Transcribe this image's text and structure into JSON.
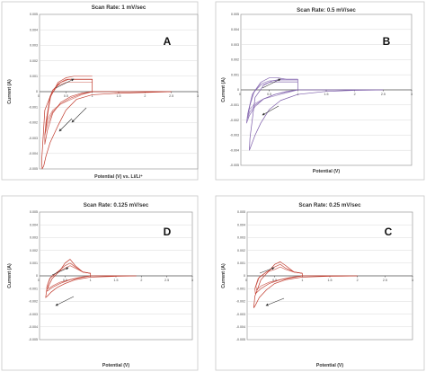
{
  "chart_data": [
    {
      "type": "line",
      "panel": "A",
      "title": "Scan Rate: 1 mV/sec",
      "xlabel": "Potential (V) vs. Li/Li⁺",
      "ylabel": "Current (A)",
      "xlim": [
        0,
        3
      ],
      "ylim": [
        -0.005,
        0.005
      ],
      "x_ticks": [
        "0.5",
        "1",
        "1.5",
        "2",
        "2.5",
        "3"
      ],
      "y_ticks": [
        "0.005",
        "0.004",
        "0.003",
        "0.002",
        "0.001",
        "0",
        "-0.001",
        "-0.002",
        "-0.003",
        "-0.004",
        "-0.005"
      ],
      "grid": true,
      "color": "#c0392b",
      "series": [
        {
          "x": [
            2.5,
            2.0,
            1.5,
            1.0,
            0.7,
            0.5,
            0.35,
            0.2,
            0.12,
            0.08,
            0.05,
            0.04,
            0.1,
            0.25,
            0.4,
            0.55,
            0.7,
            0.85,
            1.0,
            1.0,
            1.2,
            1.6,
            2.0,
            2.5
          ],
          "y": [
            0.0,
            -5e-05,
            -0.0001,
            -0.0002,
            -0.0005,
            -0.0012,
            -0.0022,
            -0.0033,
            -0.0042,
            -0.0048,
            -0.005,
            -0.0045,
            -0.0012,
            0.0001,
            0.0006,
            0.0008,
            0.0008,
            0.0008,
            0.0008,
            0.0,
            0.0,
            0.0,
            0.0,
            0.0
          ]
        },
        {
          "x": [
            1.0,
            0.8,
            0.6,
            0.4,
            0.25,
            0.15,
            0.1,
            0.1,
            0.2,
            0.35,
            0.5,
            0.65,
            0.8,
            1.0
          ],
          "y": [
            0.0,
            -0.0001,
            -0.0003,
            -0.0007,
            -0.0014,
            -0.0025,
            -0.0034,
            -0.0028,
            -0.0004,
            0.0006,
            0.0009,
            0.001,
            0.001,
            0.001
          ]
        },
        {
          "x": [
            1.0,
            0.8,
            0.6,
            0.4,
            0.25,
            0.15,
            0.1,
            0.12,
            0.2,
            0.35,
            0.5,
            0.65,
            0.8,
            1.0
          ],
          "y": [
            0.0,
            -0.00015,
            -0.0004,
            -0.0008,
            -0.0013,
            -0.0021,
            -0.0028,
            -0.002,
            -0.0003,
            0.0005,
            0.0008,
            0.0008,
            0.0008,
            0.0008
          ]
        },
        {
          "x": [
            1.0,
            0.8,
            0.6,
            0.4,
            0.25,
            0.15,
            0.12,
            0.14,
            0.22,
            0.35,
            0.5,
            0.65,
            0.8,
            1.0
          ],
          "y": [
            0.0,
            -0.0002,
            -0.0005,
            -0.0008,
            -0.0012,
            -0.0018,
            -0.0023,
            -0.0016,
            -0.0002,
            0.0004,
            0.0006,
            0.0006,
            0.0006,
            0.0006
          ]
        }
      ]
    },
    {
      "type": "line",
      "panel": "B",
      "title": "Scan Rate: 0.5 mV/sec",
      "xlabel": "Potential (V)",
      "ylabel": "Current (A)",
      "xlim": [
        0,
        3
      ],
      "ylim": [
        -0.005,
        0.005
      ],
      "x_ticks": [
        "0.5",
        "1",
        "1.5",
        "2",
        "2.5",
        "3"
      ],
      "y_ticks": [
        "0.005",
        "0.004",
        "0.003",
        "0.002",
        "0.001",
        "0",
        "-0.001",
        "-0.002",
        "-0.003",
        "-0.004",
        "-0.005"
      ],
      "grid": true,
      "color": "#7a5aa8",
      "series": [
        {
          "x": [
            2.5,
            2.0,
            1.5,
            1.0,
            0.7,
            0.5,
            0.35,
            0.25,
            0.18,
            0.15,
            0.16,
            0.25,
            0.4,
            0.55,
            0.7,
            0.85,
            1.0,
            1.0,
            1.5,
            2.0,
            2.5
          ],
          "y": [
            0.0,
            -3e-05,
            -0.0001,
            -0.0003,
            -0.0007,
            -0.0013,
            -0.0022,
            -0.003,
            -0.0037,
            -0.004,
            -0.0032,
            -0.0005,
            0.0003,
            0.0006,
            0.0007,
            0.0007,
            0.0007,
            0.0,
            0.0,
            0.0,
            0.0
          ]
        },
        {
          "x": [
            1.0,
            0.8,
            0.6,
            0.4,
            0.25,
            0.15,
            0.1,
            0.12,
            0.2,
            0.35,
            0.5,
            0.65,
            0.8,
            1.0
          ],
          "y": [
            0.0,
            -0.0001,
            -0.0003,
            -0.0006,
            -0.0011,
            -0.0017,
            -0.0022,
            -0.0016,
            -0.0003,
            0.0005,
            0.0008,
            0.0008,
            0.0007,
            0.0007
          ]
        },
        {
          "x": [
            1.0,
            0.8,
            0.6,
            0.4,
            0.25,
            0.15,
            0.12,
            0.14,
            0.22,
            0.35,
            0.5,
            0.65,
            0.8,
            1.0
          ],
          "y": [
            0.0,
            -0.00015,
            -0.0003,
            -0.0006,
            -0.001,
            -0.0015,
            -0.0019,
            -0.0013,
            -0.0002,
            0.0004,
            0.0006,
            0.0006,
            0.0006,
            0.0006
          ]
        },
        {
          "x": [
            1.0,
            0.8,
            0.6,
            0.4,
            0.25,
            0.15,
            0.14,
            0.16,
            0.24,
            0.35,
            0.5,
            0.65,
            0.8,
            1.0
          ],
          "y": [
            0.0,
            -0.0002,
            -0.0004,
            -0.0006,
            -0.0009,
            -0.0013,
            -0.0016,
            -0.001,
            -0.0001,
            0.0003,
            0.0005,
            0.0005,
            0.0005,
            0.0005
          ]
        }
      ]
    },
    {
      "type": "line",
      "panel": "D",
      "title": "Scan Rate: 0.125 mV/sec",
      "xlabel": "Potential (V)",
      "ylabel": "Current (A)",
      "xlim": [
        0,
        3
      ],
      "ylim": [
        -0.005,
        0.005
      ],
      "x_ticks": [
        "0.5",
        "1",
        "1.5",
        "2",
        "2.5",
        "3"
      ],
      "y_ticks": [
        "0.005",
        "0.004",
        "0.003",
        "0.002",
        "0.001",
        "0",
        "-0.001",
        "-0.002",
        "-0.003",
        "-0.004",
        "-0.005"
      ],
      "grid": true,
      "color": "#c0392b",
      "series": [
        {
          "x": [
            1.9,
            1.5,
            1.0,
            0.7,
            0.5,
            0.35,
            0.22,
            0.15,
            0.12,
            0.14,
            0.25,
            0.4,
            0.5,
            0.6,
            0.7,
            0.85,
            1.0,
            1.0,
            1.5,
            1.9
          ],
          "y": [
            0.0,
            -3e-05,
            -0.0001,
            -0.0003,
            -0.0006,
            -0.0009,
            -0.0013,
            -0.0016,
            -0.0017,
            -0.0011,
            -0.0002,
            0.0004,
            0.001,
            0.0013,
            0.0008,
            0.0003,
            0.0002,
            0.0,
            0.0,
            0.0
          ]
        },
        {
          "x": [
            1.0,
            0.8,
            0.6,
            0.4,
            0.25,
            0.15,
            0.14,
            0.2,
            0.35,
            0.5,
            0.6,
            0.7,
            0.85,
            1.0
          ],
          "y": [
            0.0,
            -0.0001,
            -0.0003,
            -0.0006,
            -0.0009,
            -0.0012,
            -0.0009,
            -0.0002,
            0.0003,
            0.0008,
            0.001,
            0.0007,
            0.0003,
            0.0002
          ]
        },
        {
          "x": [
            1.0,
            0.8,
            0.6,
            0.4,
            0.25,
            0.17,
            0.16,
            0.22,
            0.35,
            0.5,
            0.6,
            0.7,
            0.85,
            1.0
          ],
          "y": [
            0.0,
            -0.00015,
            -0.0003,
            -0.0005,
            -0.0008,
            -0.001,
            -0.0007,
            -0.0001,
            0.0003,
            0.0006,
            0.0008,
            0.0006,
            0.0003,
            0.0002
          ]
        }
      ]
    },
    {
      "type": "line",
      "panel": "C",
      "title": "Scan Rate: 0.25 mV/sec",
      "xlabel": "Potential (V)",
      "ylabel": "Current (A)",
      "xlim": [
        0,
        3
      ],
      "ylim": [
        -0.005,
        0.005
      ],
      "x_ticks": [
        "0.5",
        "1",
        "1.5",
        "2",
        "2.5",
        "3"
      ],
      "y_ticks": [
        "0.005",
        "0.004",
        "0.003",
        "0.002",
        "0.001",
        "0",
        "-0.001",
        "-0.002",
        "-0.003",
        "-0.004",
        "-0.005"
      ],
      "grid": true,
      "color": "#c0392b",
      "series": [
        {
          "x": [
            2.0,
            1.5,
            1.0,
            0.7,
            0.5,
            0.35,
            0.22,
            0.15,
            0.12,
            0.14,
            0.25,
            0.4,
            0.5,
            0.6,
            0.7,
            0.85,
            1.0,
            1.0,
            1.5,
            2.0
          ],
          "y": [
            0.0,
            -3e-05,
            -0.0001,
            -0.0003,
            -0.0006,
            -0.0011,
            -0.0017,
            -0.0023,
            -0.0025,
            -0.0016,
            -0.0003,
            0.0004,
            0.0009,
            0.0011,
            0.0008,
            0.0003,
            0.0002,
            0.0,
            0.0,
            0.0
          ]
        },
        {
          "x": [
            1.0,
            0.8,
            0.6,
            0.4,
            0.25,
            0.15,
            0.14,
            0.2,
            0.35,
            0.5,
            0.6,
            0.7,
            0.85,
            1.0
          ],
          "y": [
            0.0,
            -0.0001,
            -0.0003,
            -0.0006,
            -0.001,
            -0.0014,
            -0.001,
            -0.0002,
            0.0003,
            0.0007,
            0.0009,
            0.0006,
            0.0003,
            0.0002
          ]
        },
        {
          "x": [
            1.0,
            0.8,
            0.6,
            0.4,
            0.25,
            0.17,
            0.16,
            0.22,
            0.35,
            0.5,
            0.6,
            0.7,
            0.85,
            1.0
          ],
          "y": [
            0.0,
            -0.00015,
            -0.0003,
            -0.0005,
            -0.0008,
            -0.0011,
            -0.0008,
            -0.0001,
            0.0003,
            0.0005,
            0.0007,
            0.0005,
            0.0003,
            0.0002
          ]
        }
      ]
    }
  ]
}
